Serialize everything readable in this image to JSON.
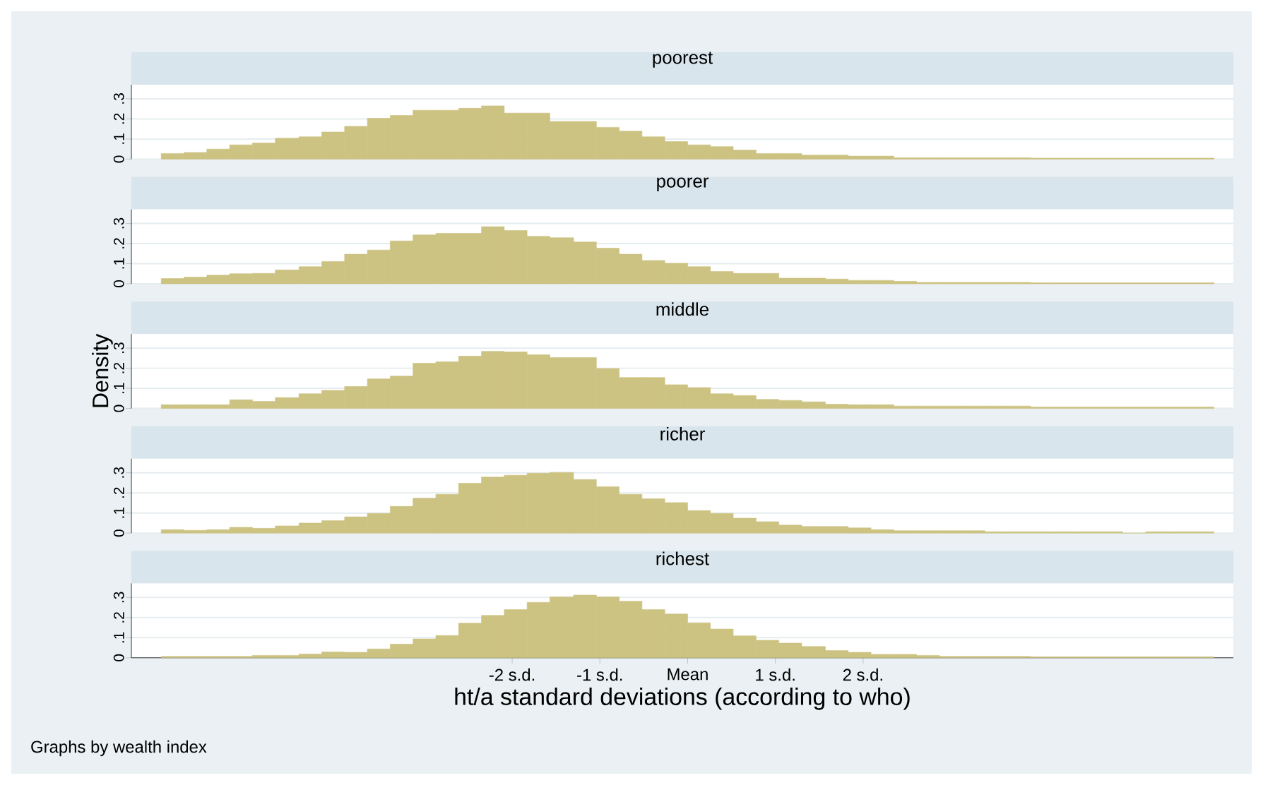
{
  "chart_data": [
    {
      "type": "histogram",
      "title": "poorest",
      "color": "#ccc282",
      "xlim": [
        -6.34,
        6.22
      ],
      "ylim": [
        0,
        0.37
      ],
      "yticks": [
        0,
        {
          "value": 0.1,
          "label": ".1"
        },
        {
          "value": 0.2,
          "label": ".2"
        },
        {
          "value": 0.3,
          "label": ".3"
        }
      ],
      "grid": "y",
      "tick_labels": "y",
      "bins": [
        -6,
        -5.74,
        -5.48,
        -5.22,
        -4.96,
        -4.7,
        -4.43,
        -4.17,
        -3.91,
        -3.65,
        -3.39,
        -3.13,
        -2.87,
        -2.61,
        -2.35,
        -2.09,
        -1.83,
        -1.57,
        -1.3,
        -1.04,
        -0.78,
        -0.52,
        -0.26,
        0,
        0.26,
        0.52,
        0.78,
        1.04,
        1.3,
        1.57,
        1.83,
        2.09,
        2.35,
        2.61,
        2.87,
        3.13,
        3.39,
        3.65,
        3.91,
        4.17,
        4.43,
        4.7,
        4.96,
        5.22,
        5.48,
        5.74,
        6
      ],
      "values": [
        0.028,
        0.033,
        0.05,
        0.071,
        0.08,
        0.104,
        0.111,
        0.135,
        0.163,
        0.203,
        0.217,
        0.243,
        0.243,
        0.253,
        0.265,
        0.229,
        0.229,
        0.187,
        0.187,
        0.158,
        0.139,
        0.111,
        0.087,
        0.071,
        0.062,
        0.045,
        0.028,
        0.028,
        0.02,
        0.02,
        0.015,
        0.015,
        0.007,
        0.007,
        0.007,
        0.007,
        0.007,
        0.007,
        0.005,
        0.005,
        0.005,
        0.005,
        0.005,
        0.005,
        0.005,
        0.005
      ]
    },
    {
      "type": "histogram",
      "title": "poorer",
      "color": "#ccc282",
      "xlim": [
        -6.34,
        6.22
      ],
      "ylim": [
        0,
        0.37
      ],
      "yticks": [
        0,
        {
          "value": 0.1,
          "label": ".1"
        },
        {
          "value": 0.2,
          "label": ".2"
        },
        {
          "value": 0.3,
          "label": ".3"
        }
      ],
      "grid": "y",
      "tick_labels": "y",
      "bins": [
        -6,
        -5.74,
        -5.48,
        -5.22,
        -4.96,
        -4.7,
        -4.43,
        -4.17,
        -3.91,
        -3.65,
        -3.39,
        -3.13,
        -2.87,
        -2.61,
        -2.35,
        -2.09,
        -1.83,
        -1.57,
        -1.3,
        -1.04,
        -0.78,
        -0.52,
        -0.26,
        0,
        0.26,
        0.52,
        0.78,
        1.04,
        1.3,
        1.57,
        1.83,
        2.09,
        2.35,
        2.61,
        2.87,
        3.13,
        3.39,
        3.65,
        3.91,
        4.17,
        4.43,
        4.7,
        4.96,
        5.22,
        5.48,
        5.74,
        6
      ],
      "values": [
        0.026,
        0.033,
        0.043,
        0.05,
        0.052,
        0.069,
        0.085,
        0.111,
        0.147,
        0.168,
        0.213,
        0.243,
        0.251,
        0.251,
        0.284,
        0.265,
        0.236,
        0.229,
        0.208,
        0.177,
        0.147,
        0.116,
        0.102,
        0.085,
        0.061,
        0.052,
        0.052,
        0.028,
        0.028,
        0.024,
        0.017,
        0.017,
        0.012,
        0.007,
        0.007,
        0.007,
        0.007,
        0.007,
        0.005,
        0.005,
        0.005,
        0.005,
        0.005,
        0.005,
        0.005,
        0.005
      ]
    },
    {
      "type": "histogram",
      "title": "middle",
      "ylabel": "Density",
      "color": "#ccc282",
      "xlim": [
        -6.34,
        6.22
      ],
      "ylim": [
        0,
        0.37
      ],
      "yticks": [
        0,
        {
          "value": 0.1,
          "label": ".1"
        },
        {
          "value": 0.2,
          "label": ".2"
        },
        {
          "value": 0.3,
          "label": ".3"
        }
      ],
      "grid": "y",
      "tick_labels": "y",
      "bins": [
        -6,
        -5.74,
        -5.48,
        -5.22,
        -4.96,
        -4.7,
        -4.43,
        -4.17,
        -3.91,
        -3.65,
        -3.39,
        -3.13,
        -2.87,
        -2.61,
        -2.35,
        -2.09,
        -1.83,
        -1.57,
        -1.3,
        -1.04,
        -0.78,
        -0.52,
        -0.26,
        0,
        0.26,
        0.52,
        0.78,
        1.04,
        1.3,
        1.57,
        1.83,
        2.09,
        2.35,
        2.61,
        2.87,
        3.13,
        3.39,
        3.65,
        3.91,
        4.17,
        4.43,
        4.7,
        4.96,
        5.22,
        5.48,
        5.74,
        6
      ],
      "values": [
        0.019,
        0.019,
        0.019,
        0.043,
        0.035,
        0.054,
        0.073,
        0.09,
        0.109,
        0.147,
        0.161,
        0.225,
        0.232,
        0.26,
        0.284,
        0.281,
        0.267,
        0.253,
        0.253,
        0.199,
        0.154,
        0.154,
        0.118,
        0.104,
        0.073,
        0.064,
        0.045,
        0.04,
        0.033,
        0.021,
        0.019,
        0.019,
        0.012,
        0.012,
        0.012,
        0.012,
        0.012,
        0.012,
        0.007,
        0.007,
        0.007,
        0.007,
        0.007,
        0.007,
        0.007,
        0.007
      ]
    },
    {
      "type": "histogram",
      "title": "richer",
      "color": "#ccc282",
      "xlim": [
        -6.34,
        6.22
      ],
      "ylim": [
        0,
        0.37
      ],
      "yticks": [
        0,
        {
          "value": 0.1,
          "label": ".1"
        },
        {
          "value": 0.2,
          "label": ".2"
        },
        {
          "value": 0.3,
          "label": ".3"
        }
      ],
      "grid": "y",
      "tick_labels": "y",
      "bins": [
        -6,
        -5.74,
        -5.48,
        -5.22,
        -4.96,
        -4.7,
        -4.43,
        -4.17,
        -3.91,
        -3.65,
        -3.39,
        -3.13,
        -2.87,
        -2.61,
        -2.35,
        -2.09,
        -1.83,
        -1.57,
        -1.3,
        -1.04,
        -0.78,
        -0.52,
        -0.26,
        0,
        0.26,
        0.52,
        0.78,
        1.04,
        1.3,
        1.57,
        1.83,
        2.09,
        2.35,
        2.61,
        2.87,
        3.13,
        3.39,
        3.65,
        3.91,
        4.17,
        4.43,
        4.7,
        4.96,
        5.22,
        5.48,
        5.74,
        6
      ],
      "values": [
        0.017,
        0.014,
        0.017,
        0.029,
        0.024,
        0.036,
        0.05,
        0.062,
        0.081,
        0.098,
        0.133,
        0.174,
        0.193,
        0.248,
        0.279,
        0.288,
        0.298,
        0.302,
        0.267,
        0.231,
        0.193,
        0.171,
        0.152,
        0.112,
        0.098,
        0.074,
        0.057,
        0.04,
        0.033,
        0.033,
        0.026,
        0.017,
        0.012,
        0.012,
        0.012,
        0.012,
        0.007,
        0.007,
        0.007,
        0.007,
        0.007,
        0.007,
        0,
        0.007,
        0.007,
        0.007
      ]
    },
    {
      "type": "histogram",
      "title": "richest",
      "xlabel": "ht/a standard deviations (according to who)",
      "annotations": [
        "Graphs by wealth index"
      ],
      "color": "#ccc282",
      "xlim": [
        -6.34,
        6.22
      ],
      "ylim": [
        0,
        0.37
      ],
      "xticks": [
        {
          "value": -2,
          "label": "-2 s.d."
        },
        {
          "value": -1,
          "label": "-1 s.d."
        },
        {
          "value": 0,
          "label": "Mean"
        },
        {
          "value": 1,
          "label": "1 s.d."
        },
        {
          "value": 2,
          "label": "2 s.d."
        }
      ],
      "yticks": [
        0,
        {
          "value": 0.1,
          "label": ".1"
        },
        {
          "value": 0.2,
          "label": ".2"
        },
        {
          "value": 0.3,
          "label": ".3"
        }
      ],
      "grid": "y",
      "bins": [
        -6,
        -5.74,
        -5.48,
        -5.22,
        -4.96,
        -4.7,
        -4.43,
        -4.17,
        -3.91,
        -3.65,
        -3.39,
        -3.13,
        -2.87,
        -2.61,
        -2.35,
        -2.09,
        -1.83,
        -1.57,
        -1.3,
        -1.04,
        -0.78,
        -0.52,
        -0.26,
        0,
        0.26,
        0.52,
        0.78,
        1.04,
        1.3,
        1.57,
        1.83,
        2.09,
        2.35,
        2.61,
        2.87,
        3.13,
        3.39,
        3.65,
        3.91,
        4.17,
        4.43,
        4.7,
        4.96,
        5.22,
        5.48,
        5.74,
        6
      ],
      "values": [
        0.007,
        0.007,
        0.007,
        0.007,
        0.012,
        0.012,
        0.019,
        0.029,
        0.027,
        0.044,
        0.068,
        0.094,
        0.111,
        0.172,
        0.211,
        0.24,
        0.276,
        0.303,
        0.312,
        0.303,
        0.281,
        0.24,
        0.218,
        0.174,
        0.143,
        0.109,
        0.087,
        0.073,
        0.056,
        0.036,
        0.027,
        0.017,
        0.017,
        0.012,
        0.007,
        0.007,
        0.007,
        0.007,
        0.005,
        0.005,
        0.005,
        0.005,
        0.005,
        0.005,
        0.005,
        0.005
      ]
    }
  ]
}
